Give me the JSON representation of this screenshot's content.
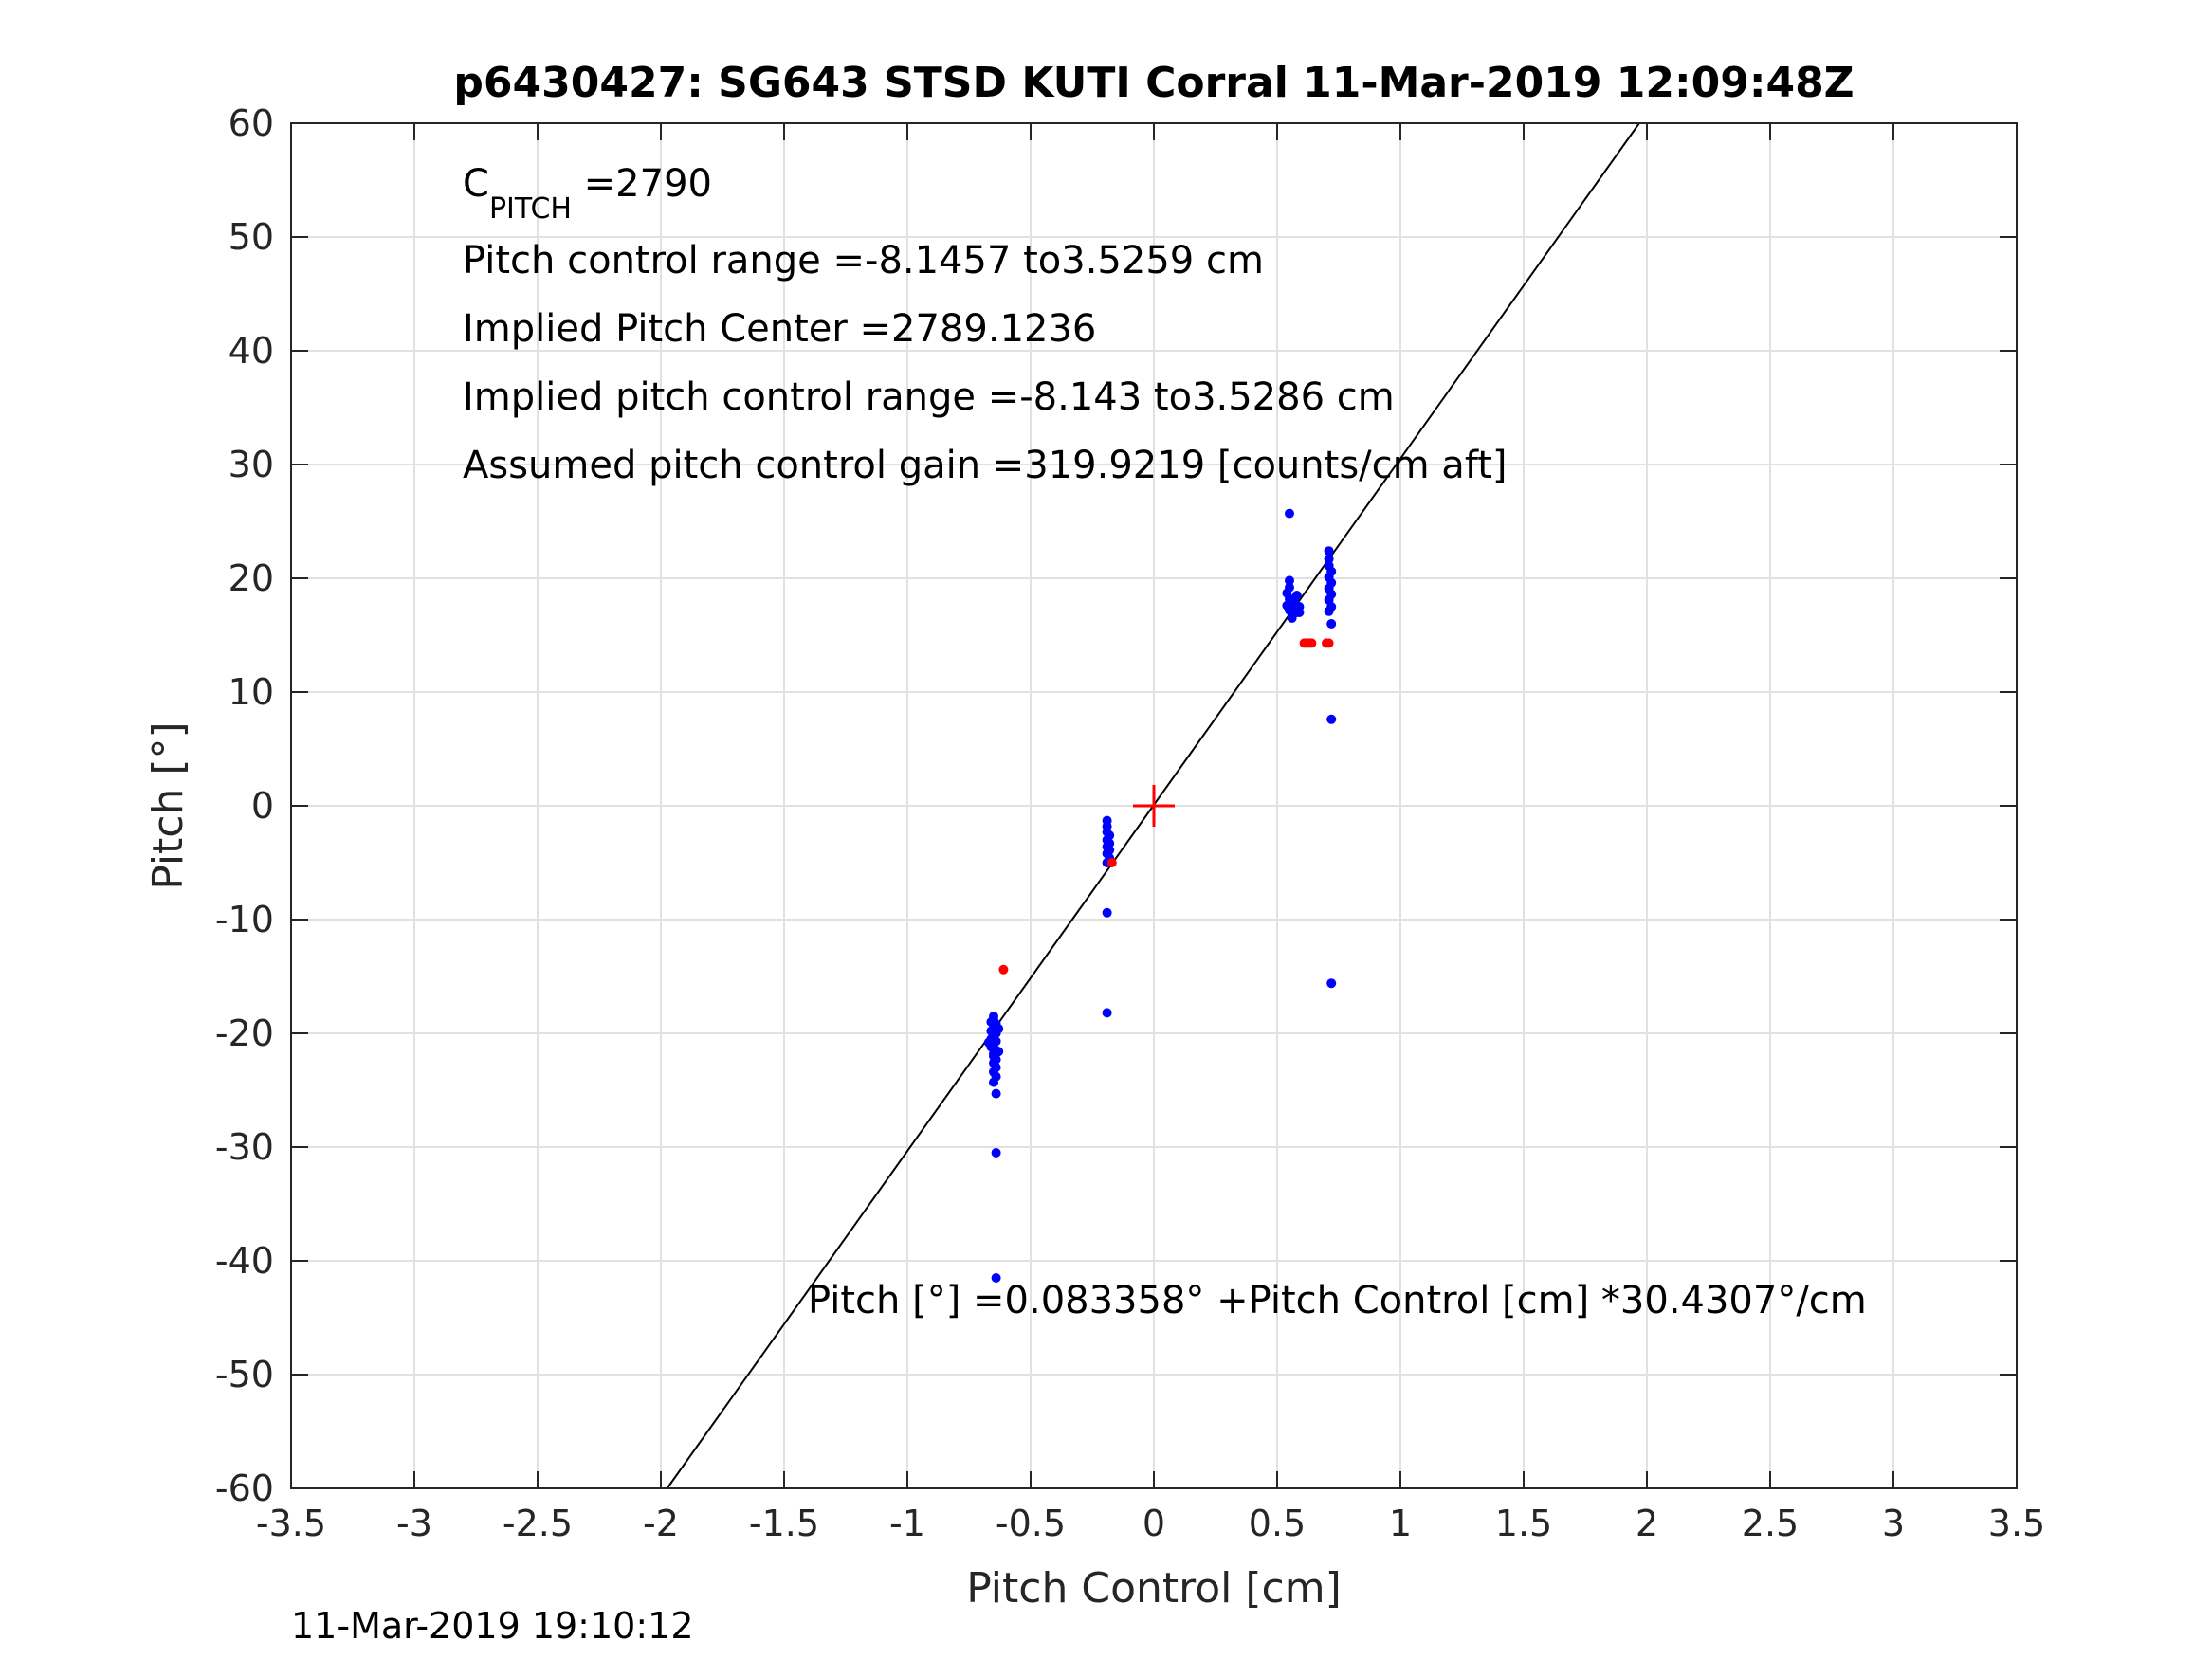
{
  "chart_data": {
    "type": "scatter",
    "title": "p6430427: SG643 STSD KUTI Corral 11-Mar-2019 12:09:48Z",
    "xlabel": "Pitch Control [cm]",
    "ylabel": "Pitch [°]",
    "xlim": [
      -3.5,
      3.5
    ],
    "ylim": [
      -60,
      60
    ],
    "xticks": [
      "-3.5",
      "-3",
      "-2.5",
      "-2",
      "-1.5",
      "-1",
      "-0.5",
      "0",
      "0.5",
      "1",
      "1.5",
      "2",
      "2.5",
      "3",
      "3.5"
    ],
    "yticks": [
      "60",
      "50",
      "40",
      "30",
      "20",
      "10",
      "0",
      "-10",
      "-20",
      "-30",
      "-40",
      "-50",
      "-60"
    ],
    "grid": true,
    "annotations": {
      "c_pitch_main": "C",
      "c_pitch_sub": "PITCH",
      "c_pitch_value": " =2790",
      "line1": "Pitch control range =-8.1457 to3.5259 cm",
      "line2": "Implied Pitch Center =2789.1236",
      "line3": "Implied pitch control range =-8.143 to3.5286 cm",
      "line4": "Assumed pitch control gain =319.9219 [counts/cm aft]",
      "equation": "Pitch [°] =0.083358° +Pitch Control [cm] *30.4307°/cm"
    },
    "fit_line": {
      "intercept": 0.083358,
      "slope": 30.4307
    },
    "center_marker": {
      "x": 0,
      "y": 0,
      "color": "#ff0000"
    },
    "series": [
      {
        "color": "#0000ff",
        "points": [
          [
            -0.65,
            -18.5
          ],
          [
            -0.65,
            -18.8
          ],
          [
            -0.66,
            -19.0
          ],
          [
            -0.64,
            -19.2
          ],
          [
            -0.65,
            -19.5
          ],
          [
            -0.66,
            -19.8
          ],
          [
            -0.64,
            -20.0
          ],
          [
            -0.65,
            -20.2
          ],
          [
            -0.66,
            -20.5
          ],
          [
            -0.64,
            -20.7
          ],
          [
            -0.65,
            -21.0
          ],
          [
            -0.66,
            -21.2
          ],
          [
            -0.64,
            -21.5
          ],
          [
            -0.65,
            -21.8
          ],
          [
            -0.65,
            -22.0
          ],
          [
            -0.64,
            -22.3
          ],
          [
            -0.65,
            -22.6
          ],
          [
            -0.64,
            -23.0
          ],
          [
            -0.65,
            -23.4
          ],
          [
            -0.64,
            -23.8
          ],
          [
            -0.65,
            -24.3
          ],
          [
            -0.64,
            -25.3
          ],
          [
            -0.64,
            -30.5
          ],
          [
            -0.64,
            -41.5
          ],
          [
            -0.67,
            -20.8
          ],
          [
            -0.63,
            -19.6
          ],
          [
            -0.63,
            -21.6
          ],
          [
            -0.19,
            -1.3
          ],
          [
            -0.19,
            -1.8
          ],
          [
            -0.19,
            -2.3
          ],
          [
            -0.18,
            -2.6
          ],
          [
            -0.19,
            -3.0
          ],
          [
            -0.18,
            -3.3
          ],
          [
            -0.19,
            -3.6
          ],
          [
            -0.18,
            -3.9
          ],
          [
            -0.19,
            -4.2
          ],
          [
            -0.18,
            -4.6
          ],
          [
            -0.19,
            -5.0
          ],
          [
            -0.19,
            -9.4
          ],
          [
            -0.19,
            -18.2
          ],
          [
            0.55,
            25.7
          ],
          [
            0.55,
            19.8
          ],
          [
            0.55,
            19.2
          ],
          [
            0.54,
            18.7
          ],
          [
            0.55,
            18.2
          ],
          [
            0.54,
            17.6
          ],
          [
            0.55,
            17.2
          ],
          [
            0.56,
            16.9
          ],
          [
            0.56,
            16.5
          ],
          [
            0.57,
            18.0
          ],
          [
            0.57,
            17.4
          ],
          [
            0.58,
            17.0
          ],
          [
            0.58,
            18.5
          ],
          [
            0.59,
            17.5
          ],
          [
            0.59,
            17.0
          ],
          [
            0.71,
            22.4
          ],
          [
            0.71,
            21.7
          ],
          [
            0.71,
            21.1
          ],
          [
            0.72,
            20.6
          ],
          [
            0.71,
            20.1
          ],
          [
            0.72,
            19.6
          ],
          [
            0.71,
            19.1
          ],
          [
            0.72,
            18.6
          ],
          [
            0.71,
            18.1
          ],
          [
            0.72,
            17.5
          ],
          [
            0.71,
            17.1
          ],
          [
            0.72,
            16.0
          ],
          [
            0.72,
            7.6
          ],
          [
            0.72,
            -15.6
          ]
        ]
      },
      {
        "color": "#ff0000",
        "points": [
          [
            -0.61,
            -14.4
          ],
          [
            -0.17,
            -5.0
          ],
          [
            0.61,
            14.3
          ],
          [
            0.62,
            14.3
          ],
          [
            0.63,
            14.3
          ],
          [
            0.64,
            14.3
          ],
          [
            0.7,
            14.3
          ],
          [
            0.71,
            14.3
          ]
        ]
      }
    ]
  },
  "footer": {
    "timestamp": "11-Mar-2019 19:10:12"
  }
}
